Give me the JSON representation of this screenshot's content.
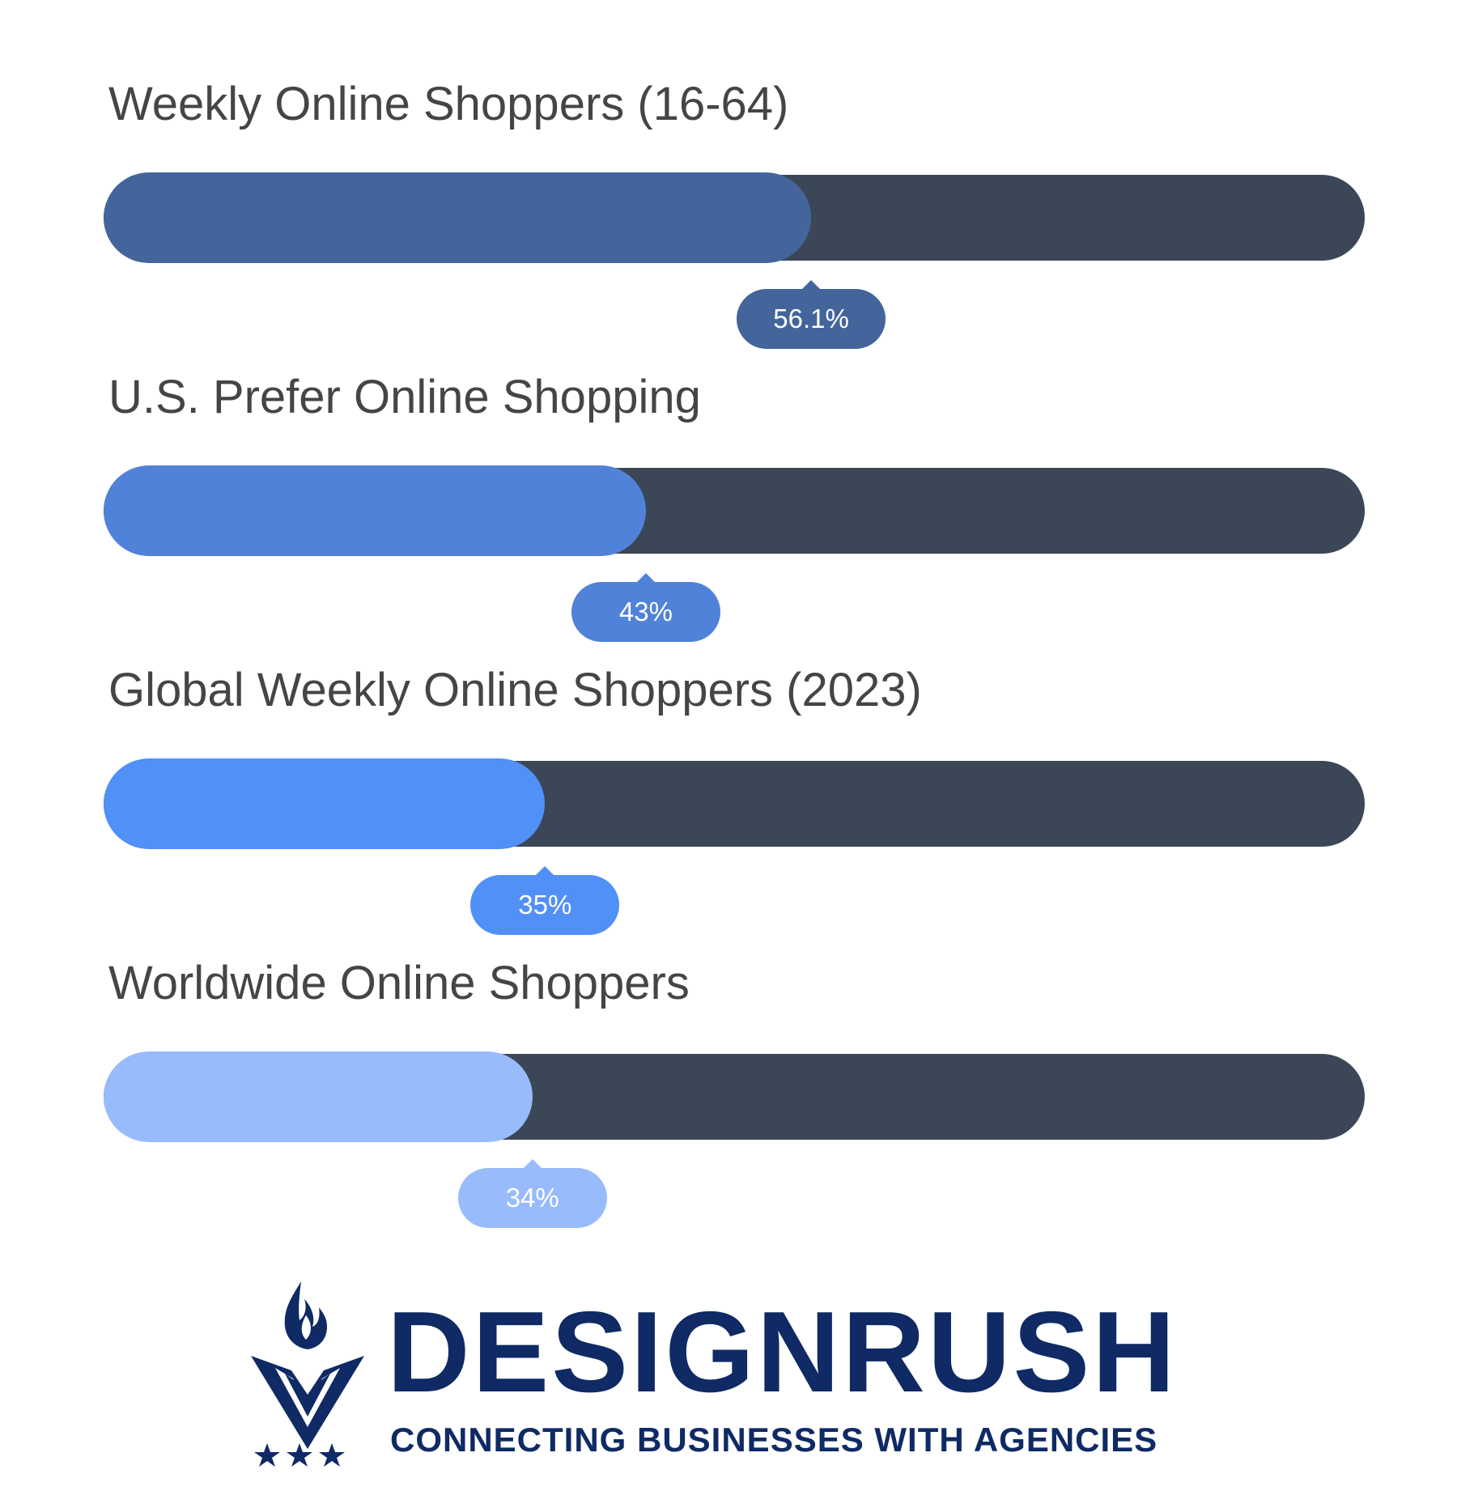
{
  "chart_data": {
    "type": "bar",
    "orientation": "horizontal",
    "categories": [
      "Weekly Online Shoppers (16-64)",
      "U.S. Prefer Online Shopping",
      "Global Weekly Online Shoppers (2023)",
      "Worldwide Online Shoppers"
    ],
    "values": [
      56.1,
      43,
      35,
      34
    ],
    "value_labels": [
      "56.1%",
      "43%",
      "35%",
      "34%"
    ],
    "xlim": [
      0,
      100
    ],
    "unit": "%",
    "colors": [
      "#43659b",
      "#5082d9",
      "#5190f7",
      "#98bbfc"
    ],
    "track_color": "#3b4657",
    "grid": false,
    "legend": "none"
  },
  "brand": {
    "name": "DESIGNRUSH",
    "tagline": "CONNECTING BUSINESSES WITH AGENCIES",
    "color": "#0f2a64",
    "icon": "torch-v-logo-icon",
    "stars_icon": "three-stars-icon"
  }
}
